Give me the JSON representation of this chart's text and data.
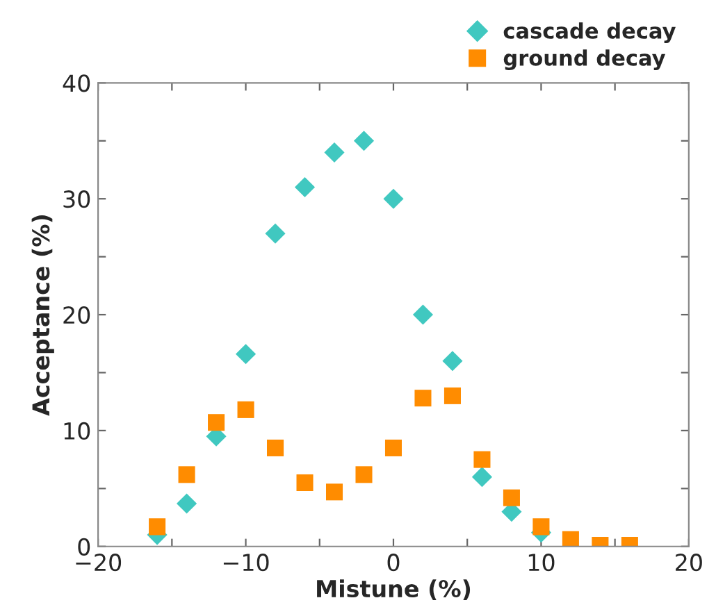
{
  "chart_data": {
    "type": "scatter",
    "xlabel": "Mistune (%)",
    "ylabel": "Acceptance (%)",
    "xlim": [
      -20,
      20
    ],
    "xticks": [
      {
        "value": -20,
        "label": "−20"
      },
      {
        "value": -15,
        "label": null
      },
      {
        "value": -10,
        "label": "−10"
      },
      {
        "value": -5,
        "label": null
      },
      0,
      {
        "value": 5,
        "label": null
      },
      10,
      {
        "value": 15,
        "label": null
      },
      20
    ],
    "ylim": [
      0,
      40
    ],
    "yticks": [
      0,
      {
        "value": 5,
        "label": null
      },
      10,
      {
        "value": 15,
        "label": null
      },
      20,
      {
        "value": 25,
        "label": null
      },
      30,
      {
        "value": 35,
        "label": null
      },
      40
    ],
    "grid": false,
    "legend": "top right",
    "series": [
      {
        "name": "cascade decay",
        "color": "#40c8c0",
        "marker": "diamond",
        "x": [
          -16,
          -14,
          -12,
          -10,
          -8,
          -6,
          -4,
          -2,
          0,
          2,
          4,
          6,
          8,
          10
        ],
        "values": [
          1.0,
          3.7,
          9.5,
          16.6,
          27,
          31,
          34,
          35,
          30,
          20,
          16,
          6.0,
          3.0,
          1.2
        ]
      },
      {
        "name": "ground decay",
        "color": "#ff8c00",
        "marker": "square",
        "x": [
          -16,
          -14,
          -12,
          -10,
          -8,
          -6,
          -4,
          -2,
          0,
          2,
          4,
          6,
          8,
          10,
          12,
          14,
          16
        ],
        "values": [
          1.7,
          6.2,
          10.7,
          11.8,
          8.5,
          5.5,
          4.7,
          6.2,
          8.5,
          12.8,
          13,
          7.5,
          4.2,
          1.7,
          0.6,
          0.1,
          0.1
        ]
      }
    ]
  }
}
